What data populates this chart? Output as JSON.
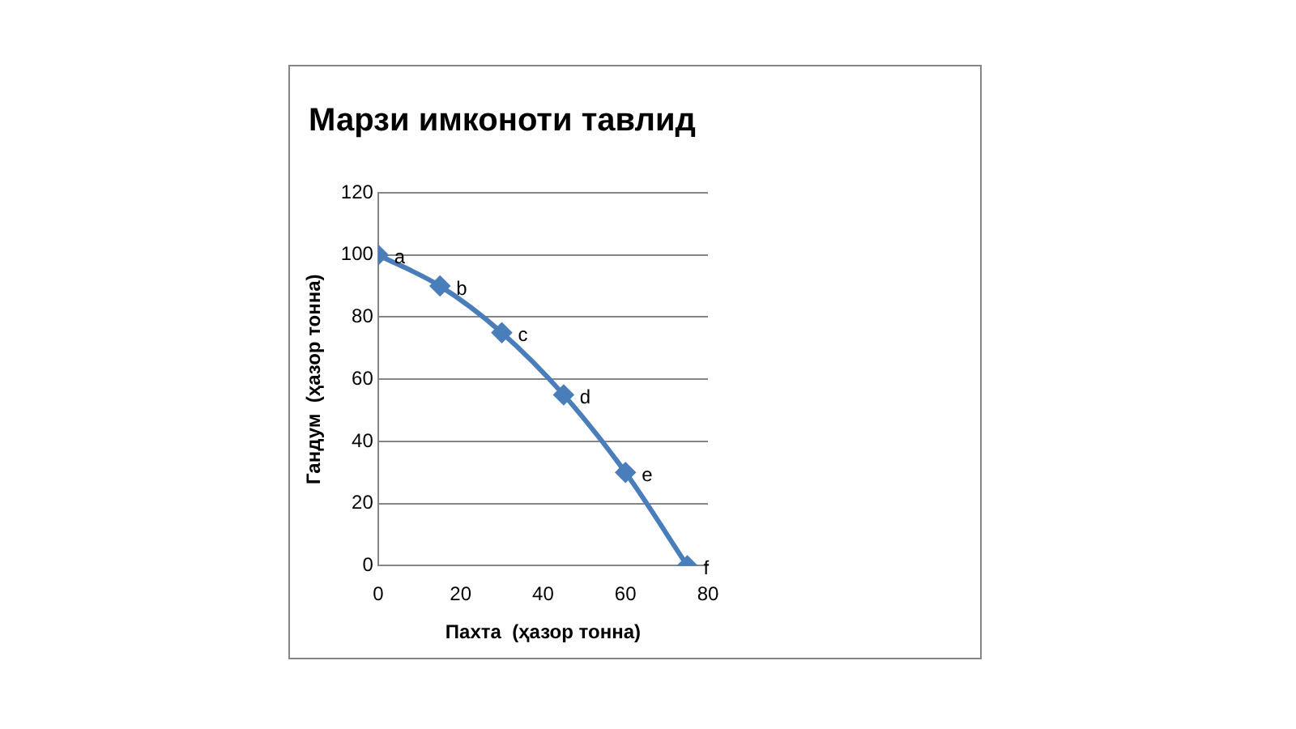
{
  "chart_data": {
    "type": "line",
    "title": "Марзи имконоти тавлид",
    "xlabel": "Пахта  (ҳазор тонна)",
    "ylabel": "Гандум  (ҳазор тонна)",
    "x": [
      0,
      15,
      30,
      45,
      60,
      75
    ],
    "series": [
      {
        "color": "#4a7ebb",
        "values": [
          100,
          90,
          75,
          55,
          30,
          0
        ]
      }
    ],
    "xlim": [
      0,
      80
    ],
    "xticks": [
      0,
      20,
      40,
      60,
      80
    ],
    "ylim": [
      0,
      120
    ],
    "yticks": [
      0,
      20,
      40,
      60,
      80,
      100,
      120
    ],
    "grid": "y",
    "legend": false,
    "marker": "diamond",
    "line_style": "solid",
    "annotations": [
      {
        "text": "a",
        "x": 0,
        "y": 100
      },
      {
        "text": "b",
        "x": 15,
        "y": 90
      },
      {
        "text": "c",
        "x": 30,
        "y": 75
      },
      {
        "text": "d",
        "x": 45,
        "y": 55
      },
      {
        "text": "e",
        "x": 60,
        "y": 30
      },
      {
        "text": "f",
        "x": 75,
        "y": 0
      }
    ]
  }
}
